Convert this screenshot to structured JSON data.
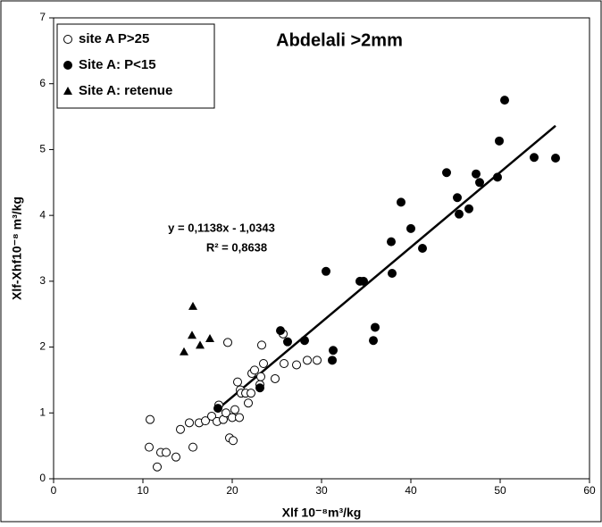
{
  "chart_data": {
    "type": "scatter",
    "title": "Abdelali >2mm",
    "x_label": "Xlf 10⁻⁸m³/kg",
    "y_label": "Xlf-Xhf10⁻⁸ m³/kg",
    "xlim": [
      0,
      60
    ],
    "ylim": [
      0,
      7
    ],
    "xticks": [
      0,
      10,
      20,
      30,
      40,
      50,
      60
    ],
    "yticks": [
      0,
      1,
      2,
      3,
      4,
      5,
      6,
      7
    ],
    "legend": "top-left",
    "series": [
      {
        "name": "site A P>25",
        "color": "#000000",
        "marker": "circle-open",
        "x": [
          10.8,
          10.7,
          11.6,
          12,
          12.6,
          13.7,
          14.2,
          15.2,
          15.6,
          16.3,
          17,
          17.7,
          18.3,
          18.5,
          19,
          19.3,
          19.5,
          19.7,
          20.1,
          20,
          20.3,
          20.6,
          20.8,
          20.9,
          21,
          21.5,
          21.8,
          22.2,
          22.5,
          22.1,
          23.1,
          23.3,
          23.5,
          23.2,
          24.8,
          25.8,
          25.7,
          27.2,
          28.4,
          29.5
        ],
        "values": [
          0.9,
          0.48,
          0.18,
          0.4,
          0.4,
          0.33,
          0.75,
          0.85,
          0.48,
          0.85,
          0.88,
          0.95,
          0.87,
          1.12,
          0.9,
          1.0,
          2.07,
          0.62,
          0.58,
          0.93,
          1.05,
          1.47,
          0.93,
          1.35,
          1.3,
          1.3,
          1.15,
          1.6,
          1.65,
          1.3,
          1.43,
          2.03,
          1.75,
          1.55,
          1.52,
          1.75,
          2.2,
          1.73,
          1.8,
          1.8
        ]
      },
      {
        "name": "Site A: P<15",
        "color": "#000000",
        "marker": "circle",
        "x": [
          18.4,
          23.1,
          25.4,
          26.2,
          28.1,
          30.5,
          31.2,
          31.3,
          34.3,
          34.7,
          35.8,
          36,
          37.8,
          37.9,
          38.9,
          40,
          41.3,
          44,
          45.2,
          45.4,
          46.5,
          47.3,
          47.7,
          49.7,
          49.9,
          50.5,
          53.8,
          56.2
        ],
        "values": [
          1.07,
          1.38,
          2.25,
          2.08,
          2.1,
          3.15,
          1.8,
          1.95,
          3.0,
          3.0,
          2.1,
          2.3,
          3.6,
          3.12,
          4.2,
          3.8,
          3.5,
          4.65,
          4.27,
          4.02,
          4.1,
          4.63,
          4.5,
          4.58,
          5.13,
          5.75,
          4.88,
          4.87
        ]
      },
      {
        "name": "Site A: retenue",
        "color": "#000000",
        "marker": "triangle",
        "x": [
          14.6,
          15.5,
          15.6,
          16.4,
          17.5
        ],
        "values": [
          1.93,
          2.18,
          2.62,
          2.03,
          2.13
        ]
      }
    ],
    "trendline": {
      "slope": 0.1138,
      "intercept": -1.0343,
      "x": [
        18.5,
        56.2
      ]
    },
    "annotations": [
      "y = 0,1138x - 1,0343",
      "R² = 0,8638"
    ]
  }
}
